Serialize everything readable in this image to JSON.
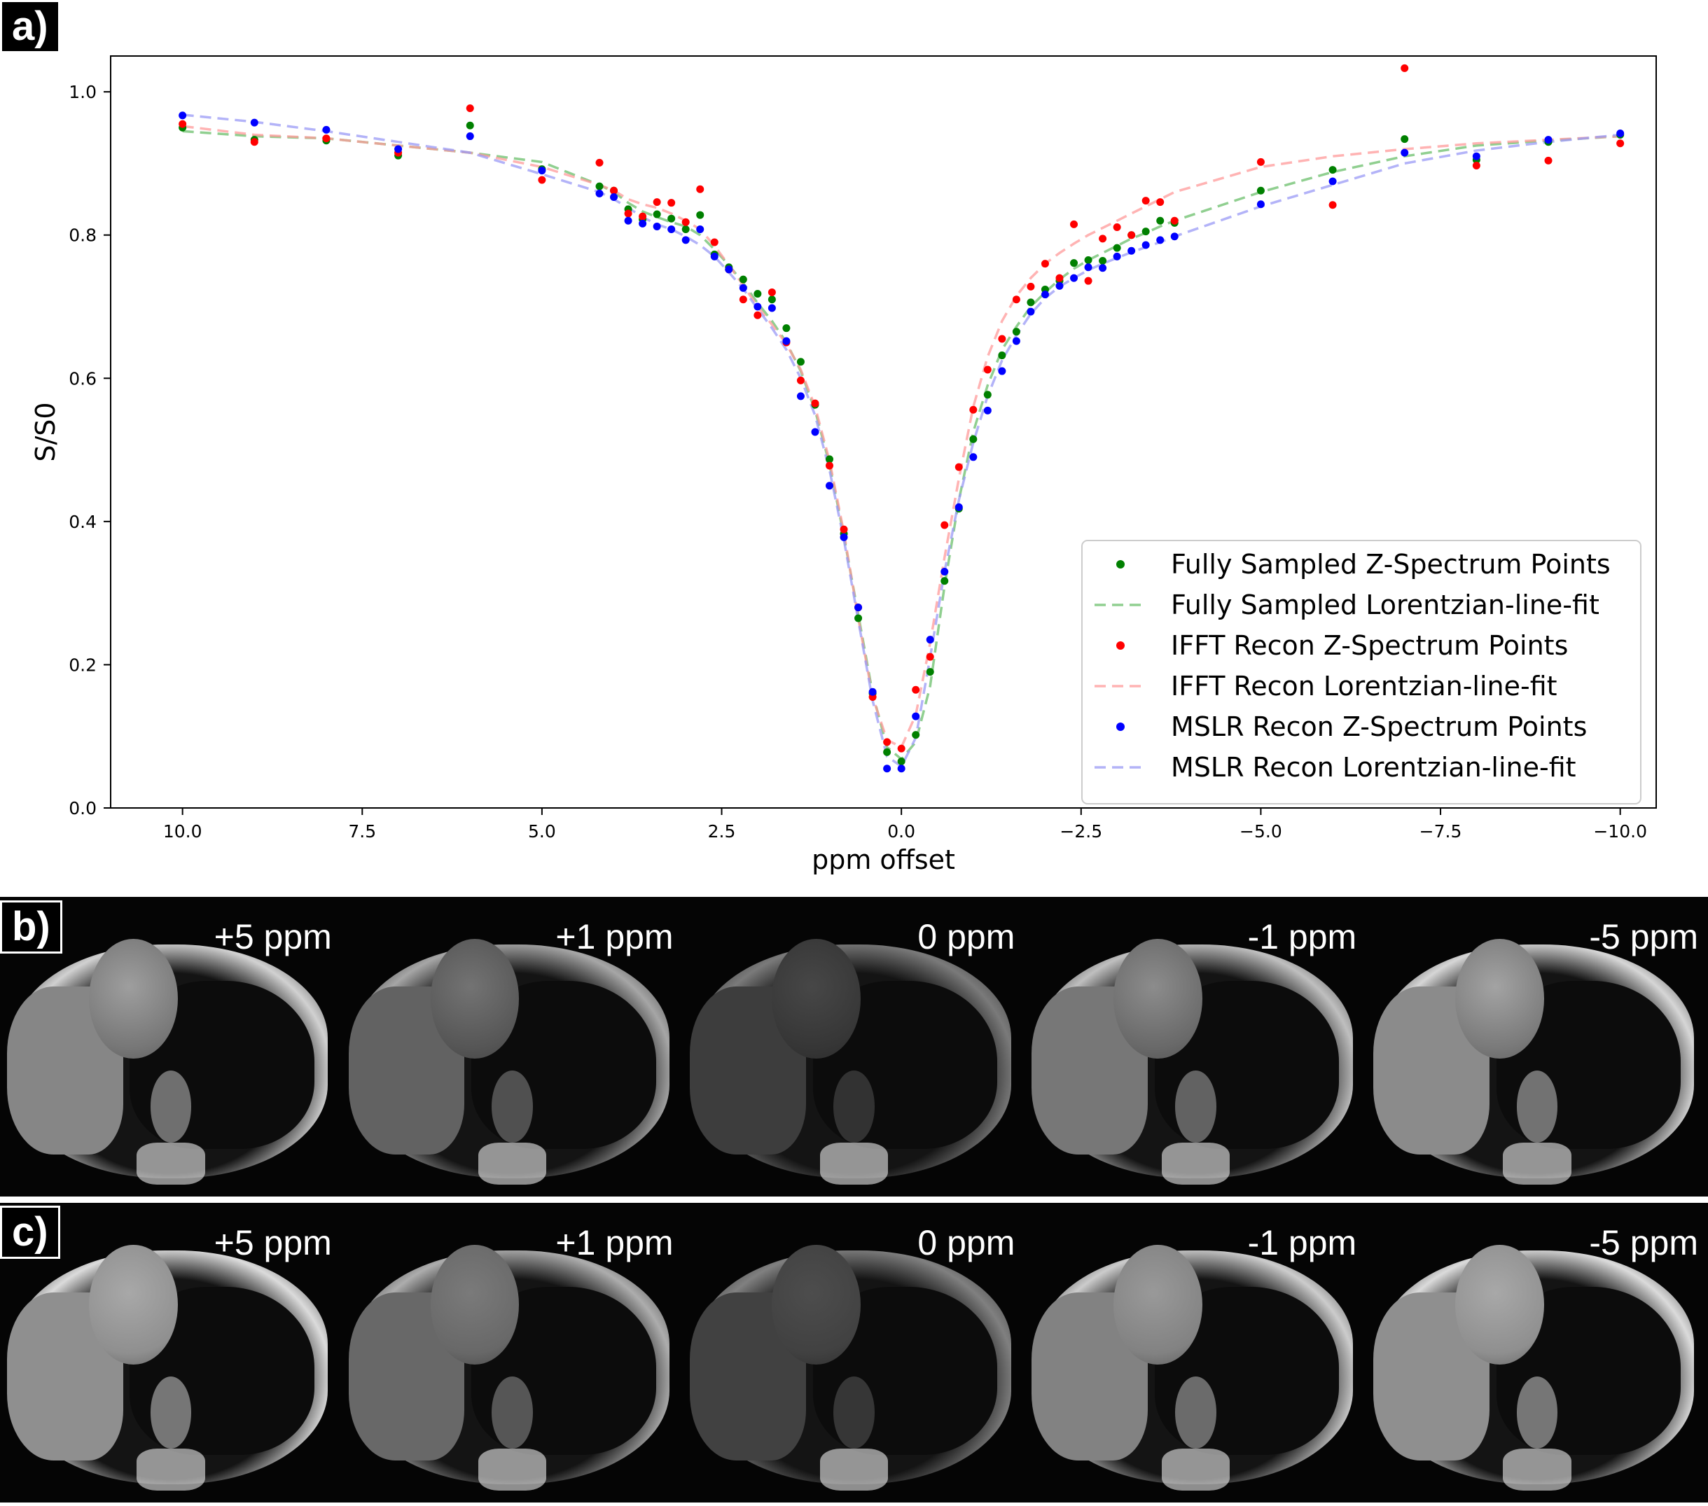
{
  "panels": {
    "a_label": "a)",
    "b_label": "b)",
    "c_label": "c)"
  },
  "chart_data": {
    "type": "scatter",
    "xlabel": "ppm offset",
    "ylabel": "S/S0",
    "xlim": [
      11.0,
      -10.5
    ],
    "ylim": [
      0.0,
      1.05
    ],
    "xticks": [
      10.0,
      7.5,
      5.0,
      2.5,
      0.0,
      -2.5,
      -5.0,
      -7.5,
      -10.0
    ],
    "xtick_labels": [
      "10.0",
      "7.5",
      "5.0",
      "2.5",
      "0.0",
      "−2.5",
      "−5.0",
      "−7.5",
      "−10.0"
    ],
    "yticks": [
      0.0,
      0.2,
      0.4,
      0.6,
      0.8,
      1.0
    ],
    "ytick_labels": [
      "0.0",
      "0.2",
      "0.4",
      "0.6",
      "0.8",
      "1.0"
    ],
    "legend_position": "lower-right",
    "x": [
      10.0,
      9.0,
      8.0,
      7.0,
      6.0,
      5.0,
      4.2,
      4.0,
      3.8,
      3.6,
      3.4,
      3.2,
      3.0,
      2.8,
      2.6,
      2.4,
      2.2,
      2.0,
      1.8,
      1.6,
      1.4,
      1.2,
      1.0,
      0.8,
      0.6,
      0.4,
      0.2,
      0.0,
      -0.2,
      -0.4,
      -0.6,
      -0.8,
      -1.0,
      -1.2,
      -1.4,
      -1.6,
      -1.8,
      -2.0,
      -2.2,
      -2.4,
      -2.6,
      -2.8,
      -3.0,
      -3.2,
      -3.4,
      -3.6,
      -3.8,
      -5.0,
      -6.0,
      -7.0,
      -8.0,
      -9.0,
      -10.0
    ],
    "series": [
      {
        "name": "Fully Sampled Z-Spectrum Points",
        "kind": "points",
        "color": "#008000",
        "values": [
          0.95,
          0.933,
          0.932,
          0.911,
          0.953,
          0.892,
          0.868,
          0.862,
          0.836,
          0.822,
          0.829,
          0.823,
          0.808,
          0.828,
          0.773,
          0.755,
          0.738,
          0.718,
          0.71,
          0.67,
          0.623,
          0.563,
          0.487,
          0.383,
          0.265,
          0.16,
          0.078,
          0.065,
          0.102,
          0.19,
          0.317,
          0.418,
          0.515,
          0.577,
          0.632,
          0.665,
          0.706,
          0.724,
          0.736,
          0.761,
          0.765,
          0.764,
          0.782,
          0.8,
          0.805,
          0.82,
          0.817,
          0.862,
          0.891,
          0.934,
          0.905,
          0.93,
          0.94
        ]
      },
      {
        "name": "Fully Sampled Lorentzian-line-fit",
        "kind": "line",
        "color": "#6bbf6b",
        "values": [
          0.945,
          0.938,
          0.935,
          0.925,
          0.915,
          0.902,
          0.87,
          0.86,
          0.845,
          0.833,
          0.825,
          0.818,
          0.812,
          0.8,
          0.78,
          0.758,
          0.733,
          0.705,
          0.68,
          0.65,
          0.61,
          0.555,
          0.48,
          0.38,
          0.27,
          0.16,
          0.085,
          0.068,
          0.092,
          0.17,
          0.31,
          0.43,
          0.525,
          0.59,
          0.64,
          0.672,
          0.7,
          0.72,
          0.738,
          0.753,
          0.765,
          0.775,
          0.785,
          0.795,
          0.803,
          0.812,
          0.82,
          0.86,
          0.888,
          0.91,
          0.925,
          0.932,
          0.938
        ]
      },
      {
        "name": "IFFT Recon Z-Spectrum Points",
        "kind": "points",
        "color": "#ff0000",
        "values": [
          0.955,
          0.93,
          0.935,
          0.915,
          0.977,
          0.877,
          0.901,
          0.862,
          0.83,
          0.826,
          0.846,
          0.845,
          0.818,
          0.864,
          0.79,
          0.752,
          0.71,
          0.688,
          0.72,
          0.65,
          0.597,
          0.565,
          0.478,
          0.389,
          0.28,
          0.155,
          0.092,
          0.083,
          0.165,
          0.211,
          0.395,
          0.476,
          0.556,
          0.612,
          0.655,
          0.71,
          0.728,
          0.76,
          0.74,
          0.815,
          0.736,
          0.795,
          0.811,
          0.8,
          0.848,
          0.846,
          0.82,
          0.902,
          0.842,
          1.033,
          0.897,
          0.904,
          0.928
        ]
      },
      {
        "name": "IFFT Recon Lorentzian-line-fit",
        "kind": "line",
        "color": "#ff9a9a",
        "values": [
          0.952,
          0.94,
          0.935,
          0.925,
          0.915,
          0.895,
          0.87,
          0.862,
          0.85,
          0.843,
          0.838,
          0.83,
          0.82,
          0.808,
          0.785,
          0.758,
          0.73,
          0.7,
          0.675,
          0.648,
          0.612,
          0.56,
          0.485,
          0.385,
          0.265,
          0.155,
          0.095,
          0.085,
          0.13,
          0.23,
          0.35,
          0.46,
          0.56,
          0.63,
          0.68,
          0.715,
          0.74,
          0.76,
          0.775,
          0.788,
          0.8,
          0.81,
          0.82,
          0.83,
          0.84,
          0.85,
          0.86,
          0.895,
          0.91,
          0.92,
          0.928,
          0.933,
          0.938
        ]
      },
      {
        "name": "MSLR Recon Z-Spectrum Points",
        "kind": "points",
        "color": "#0000ff",
        "values": [
          0.967,
          0.957,
          0.947,
          0.92,
          0.938,
          0.89,
          0.858,
          0.853,
          0.82,
          0.816,
          0.812,
          0.808,
          0.793,
          0.808,
          0.77,
          0.752,
          0.726,
          0.7,
          0.698,
          0.652,
          0.575,
          0.525,
          0.45,
          0.378,
          0.28,
          0.162,
          0.055,
          0.055,
          0.128,
          0.235,
          0.33,
          0.42,
          0.49,
          0.555,
          0.61,
          0.652,
          0.693,
          0.717,
          0.729,
          0.74,
          0.755,
          0.754,
          0.77,
          0.778,
          0.786,
          0.793,
          0.798,
          0.843,
          0.875,
          0.915,
          0.91,
          0.933,
          0.942
        ]
      },
      {
        "name": "MSLR Recon  Lorentzian-line-fit",
        "kind": "line",
        "color": "#9a9af5",
        "values": [
          0.968,
          0.958,
          0.945,
          0.93,
          0.915,
          0.885,
          0.86,
          0.85,
          0.838,
          0.825,
          0.815,
          0.808,
          0.798,
          0.786,
          0.77,
          0.748,
          0.725,
          0.697,
          0.67,
          0.64,
          0.6,
          0.548,
          0.472,
          0.375,
          0.262,
          0.15,
          0.072,
          0.058,
          0.098,
          0.21,
          0.33,
          0.43,
          0.51,
          0.575,
          0.625,
          0.66,
          0.69,
          0.712,
          0.728,
          0.74,
          0.751,
          0.76,
          0.768,
          0.776,
          0.783,
          0.79,
          0.798,
          0.84,
          0.87,
          0.9,
          0.918,
          0.93,
          0.94
        ]
      }
    ]
  },
  "strip_b": {
    "tiles": [
      {
        "label": "+5 ppm",
        "heart_brightness": 0.62
      },
      {
        "label": "+1 ppm",
        "heart_brightness": 0.45
      },
      {
        "label": "0 ppm",
        "heart_brightness": 0.28
      },
      {
        "label": "-1 ppm",
        "heart_brightness": 0.55
      },
      {
        "label": "-5 ppm",
        "heart_brightness": 0.64
      }
    ]
  },
  "strip_c": {
    "tiles": [
      {
        "label": "+5 ppm",
        "heart_brightness": 0.66
      },
      {
        "label": "+1 ppm",
        "heart_brightness": 0.48
      },
      {
        "label": "0 ppm",
        "heart_brightness": 0.3
      },
      {
        "label": "-1 ppm",
        "heart_brightness": 0.6
      },
      {
        "label": "-5 ppm",
        "heart_brightness": 0.66
      }
    ]
  }
}
